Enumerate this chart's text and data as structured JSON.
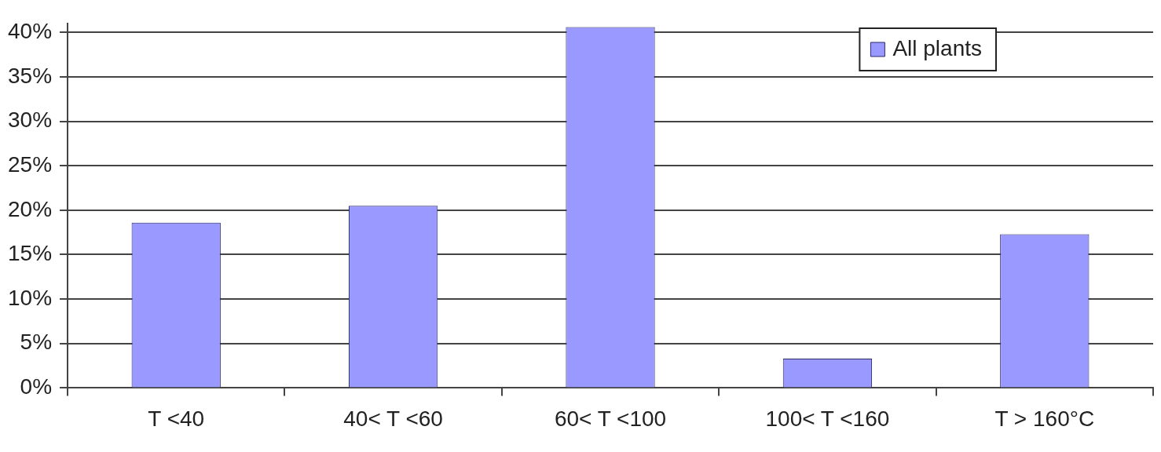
{
  "chart_data": {
    "type": "bar",
    "categories": [
      "T <40",
      "40< T <60",
      "60< T <100",
      "100< T <160",
      "T > 160°C"
    ],
    "series": [
      {
        "name": "All plants",
        "color": "#9999ff",
        "values": [
          18.6,
          20.5,
          40.6,
          3.3,
          17.3
        ]
      }
    ],
    "ylim": [
      0,
      41
    ],
    "yticks": [
      {
        "value": 0,
        "label": "0%"
      },
      {
        "value": 5,
        "label": "5%"
      },
      {
        "value": 10,
        "label": "10%"
      },
      {
        "value": 15,
        "label": "15%"
      },
      {
        "value": 20,
        "label": "20%"
      },
      {
        "value": 25,
        "label": "25%"
      },
      {
        "value": 30,
        "label": "30%"
      },
      {
        "value": 35,
        "label": "35%"
      },
      {
        "value": 40,
        "label": "40%"
      }
    ],
    "grid": "y",
    "legend": "top right"
  }
}
